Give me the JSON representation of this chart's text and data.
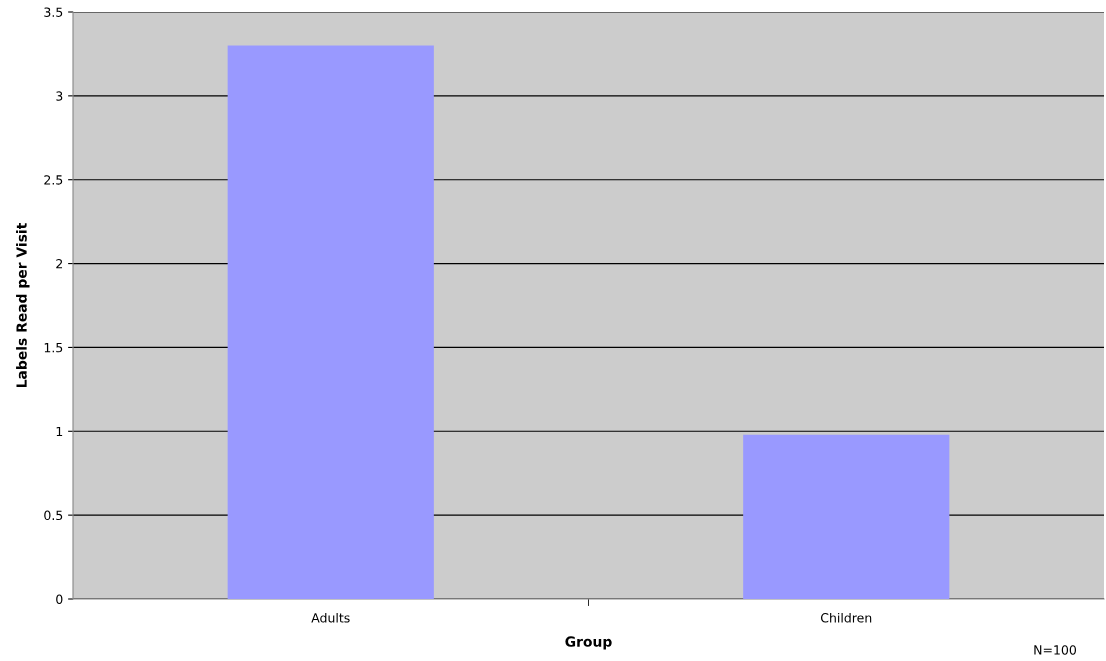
{
  "chart_data": {
    "type": "bar",
    "xlabel": "Group",
    "ylabel": "Labels Read per Visit",
    "categories": [
      "Adults",
      "Children"
    ],
    "values": [
      3.3,
      0.98
    ],
    "color": "#9999ff",
    "ylim": [
      0,
      3.5
    ],
    "yticks": [
      0,
      0.5,
      1,
      1.5,
      2,
      2.5,
      3,
      3.5
    ],
    "grid": "y",
    "annotations": [
      "N=100"
    ]
  }
}
